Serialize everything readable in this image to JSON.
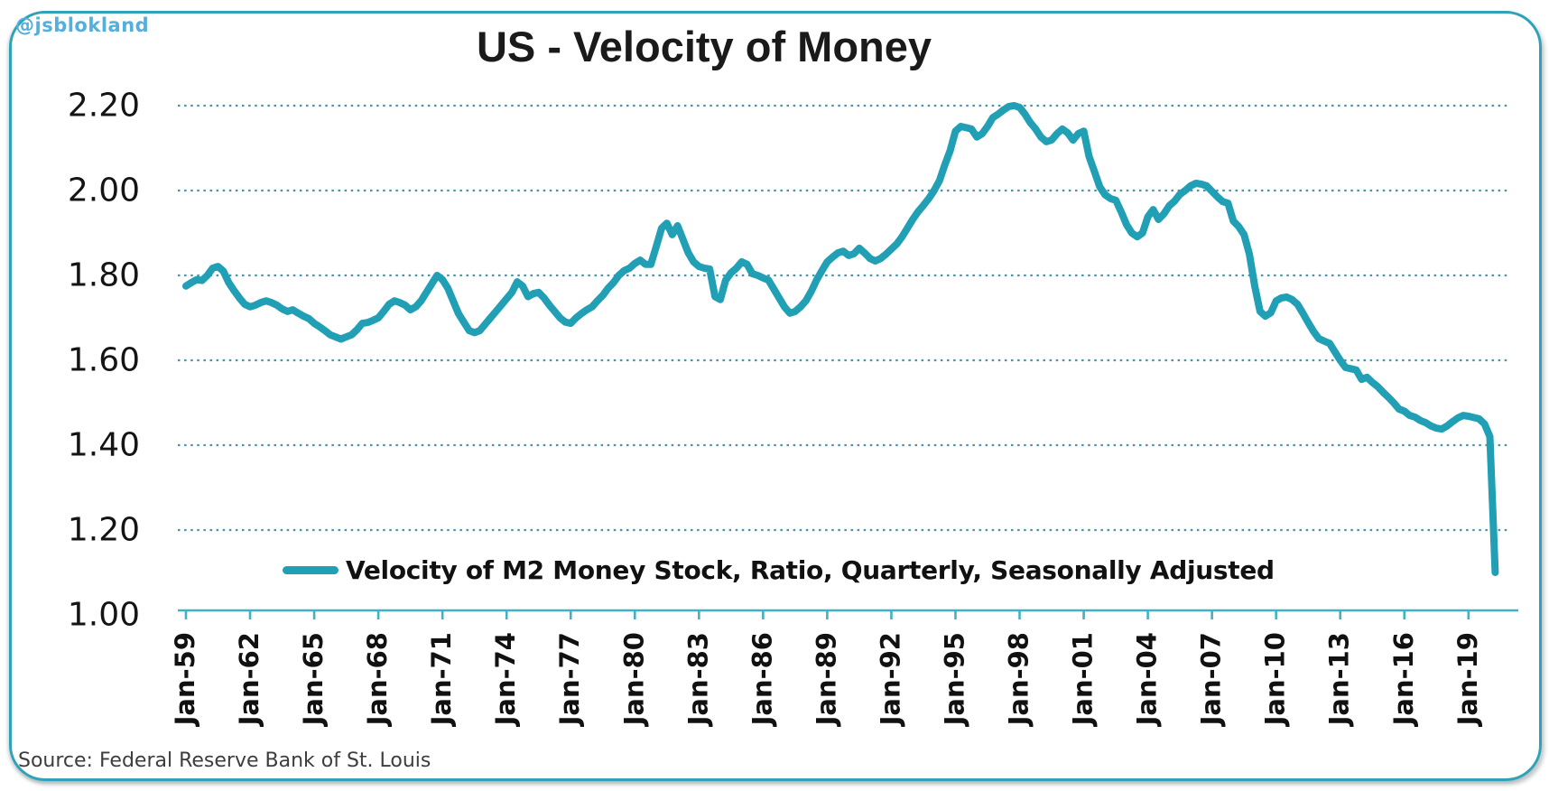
{
  "watermark": "@jsblokland",
  "title": "US - Velocity of Money",
  "legend": {
    "label": "Velocity of M2 Money Stock, Ratio, Quarterly, Seasonally Adjusted"
  },
  "source": "Source: Federal Reserve Bank of St. Louis",
  "colors": {
    "line": "#209FB5",
    "axis": "#44B0C6",
    "grid": "#4B93A4",
    "border": "#2EA2B9",
    "watermark": "#55AEDC",
    "title_text": "#1A1A1A",
    "tick_label": "#111111",
    "source_text": "#3D3D3D"
  },
  "chart_data": {
    "type": "line",
    "title": "US - Velocity of Money",
    "xlabel": "",
    "ylabel": "",
    "ylim": [
      1.0,
      2.2
    ],
    "grid": "horizontal-dotted",
    "legend_position": "bottom-center",
    "y_ticks": [
      "1.00",
      "1.20",
      "1.40",
      "1.60",
      "1.80",
      "2.00",
      "2.20"
    ],
    "x_tick_labels": [
      "Jan-59",
      "Jan-62",
      "Jan-65",
      "Jan-68",
      "Jan-71",
      "Jan-74",
      "Jan-77",
      "Jan-80",
      "Jan-83",
      "Jan-86",
      "Jan-89",
      "Jan-92",
      "Jan-95",
      "Jan-98",
      "Jan-01",
      "Jan-04",
      "Jan-07",
      "Jan-10",
      "Jan-13",
      "Jan-16",
      "Jan-19"
    ],
    "series": [
      {
        "name": "Velocity of M2 Money Stock, Ratio, Quarterly, Seasonally Adjusted",
        "frequency": "quarterly",
        "start": "1959Q1",
        "end": "2020Q2",
        "values": [
          1.775,
          1.783,
          1.79,
          1.788,
          1.8,
          1.817,
          1.821,
          1.81,
          1.783,
          1.764,
          1.747,
          1.732,
          1.726,
          1.73,
          1.736,
          1.74,
          1.736,
          1.73,
          1.721,
          1.715,
          1.719,
          1.711,
          1.704,
          1.698,
          1.687,
          1.679,
          1.67,
          1.66,
          1.655,
          1.65,
          1.655,
          1.66,
          1.672,
          1.687,
          1.689,
          1.694,
          1.7,
          1.715,
          1.732,
          1.74,
          1.736,
          1.73,
          1.719,
          1.726,
          1.74,
          1.76,
          1.78,
          1.8,
          1.79,
          1.77,
          1.74,
          1.71,
          1.69,
          1.67,
          1.665,
          1.67,
          1.685,
          1.7,
          1.715,
          1.73,
          1.745,
          1.76,
          1.785,
          1.775,
          1.75,
          1.757,
          1.76,
          1.747,
          1.73,
          1.715,
          1.7,
          1.69,
          1.687,
          1.7,
          1.71,
          1.719,
          1.726,
          1.74,
          1.753,
          1.77,
          1.783,
          1.8,
          1.811,
          1.817,
          1.828,
          1.836,
          1.826,
          1.826,
          1.868,
          1.911,
          1.923,
          1.896,
          1.917,
          1.885,
          1.853,
          1.832,
          1.821,
          1.817,
          1.815,
          1.75,
          1.743,
          1.789,
          1.806,
          1.817,
          1.832,
          1.826,
          1.804,
          1.8,
          1.794,
          1.789,
          1.768,
          1.747,
          1.726,
          1.711,
          1.715,
          1.726,
          1.74,
          1.762,
          1.789,
          1.811,
          1.832,
          1.843,
          1.853,
          1.857,
          1.847,
          1.851,
          1.864,
          1.853,
          1.84,
          1.834,
          1.84,
          1.85,
          1.862,
          1.874,
          1.891,
          1.911,
          1.932,
          1.95,
          1.965,
          1.981,
          2.0,
          2.023,
          2.06,
          2.094,
          2.14,
          2.151,
          2.148,
          2.145,
          2.126,
          2.134,
          2.151,
          2.172,
          2.18,
          2.19,
          2.198,
          2.2,
          2.196,
          2.18,
          2.16,
          2.145,
          2.126,
          2.115,
          2.119,
          2.134,
          2.145,
          2.136,
          2.119,
          2.134,
          2.14,
          2.08,
          2.045,
          2.009,
          1.99,
          1.981,
          1.977,
          1.95,
          1.92,
          1.9,
          1.891,
          1.9,
          1.938,
          1.955,
          1.932,
          1.945,
          1.964,
          1.975,
          1.991,
          2.0,
          2.011,
          2.017,
          2.015,
          2.011,
          1.998,
          1.985,
          1.974,
          1.97,
          1.928,
          1.915,
          1.896,
          1.85,
          1.775,
          1.715,
          1.704,
          1.712,
          1.74,
          1.747,
          1.749,
          1.743,
          1.732,
          1.711,
          1.689,
          1.668,
          1.651,
          1.645,
          1.64,
          1.62,
          1.6,
          1.583,
          1.58,
          1.577,
          1.555,
          1.56,
          1.548,
          1.538,
          1.525,
          1.513,
          1.5,
          1.485,
          1.48,
          1.47,
          1.466,
          1.458,
          1.453,
          1.445,
          1.44,
          1.438,
          1.445,
          1.455,
          1.464,
          1.47,
          1.468,
          1.465,
          1.462,
          1.45,
          1.42,
          1.1
        ]
      }
    ]
  }
}
